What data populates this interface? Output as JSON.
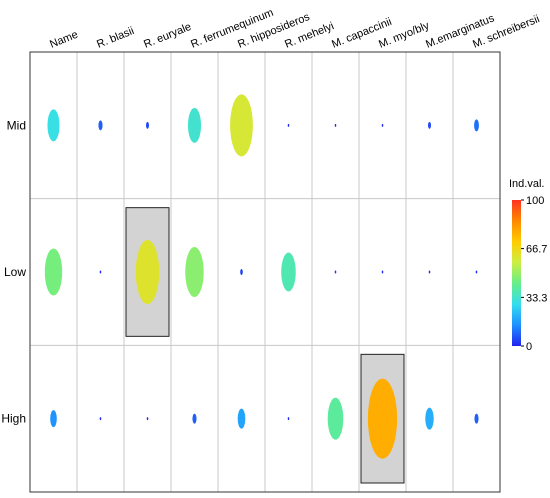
{
  "chart_data": {
    "type": "heatmap",
    "columns": [
      "Name",
      "R. blasii",
      "R. euryale",
      "R. ferrumequinum",
      "R. hipposideros",
      "R. mehelyi",
      "M. capaccinii",
      "M. myo/bly",
      "M.emarginatus",
      "M. schreibersii"
    ],
    "rows": [
      "Mid",
      "Low",
      "High"
    ],
    "values": [
      [
        30,
        8,
        5,
        33,
        60,
        1,
        1,
        1,
        5,
        10
      ],
      [
        45,
        1,
        62,
        48,
        4,
        37,
        1,
        1,
        1,
        1
      ],
      [
        15,
        1,
        1,
        8,
        18,
        1,
        40,
        78,
        20,
        8
      ]
    ],
    "highlighted": [
      {
        "row": "Low",
        "column": "R. euryale"
      },
      {
        "row": "High",
        "column": "M. myo/bly"
      }
    ],
    "legend": {
      "title": "Ind.val.",
      "ticks": [
        "100",
        "66.7",
        "33.3",
        "0"
      ],
      "range": [
        0,
        100
      ]
    },
    "colors": {
      "grid": "#c8c8c8",
      "border": "#333333",
      "highlight_fill": "#d3d3d3",
      "highlight_stroke": "#222222",
      "gradient": [
        "#2222ee",
        "#1e90ff",
        "#33ddee",
        "#66ee88",
        "#ccee44",
        "#ffcc00",
        "#ff8800",
        "#ff3322"
      ]
    }
  }
}
